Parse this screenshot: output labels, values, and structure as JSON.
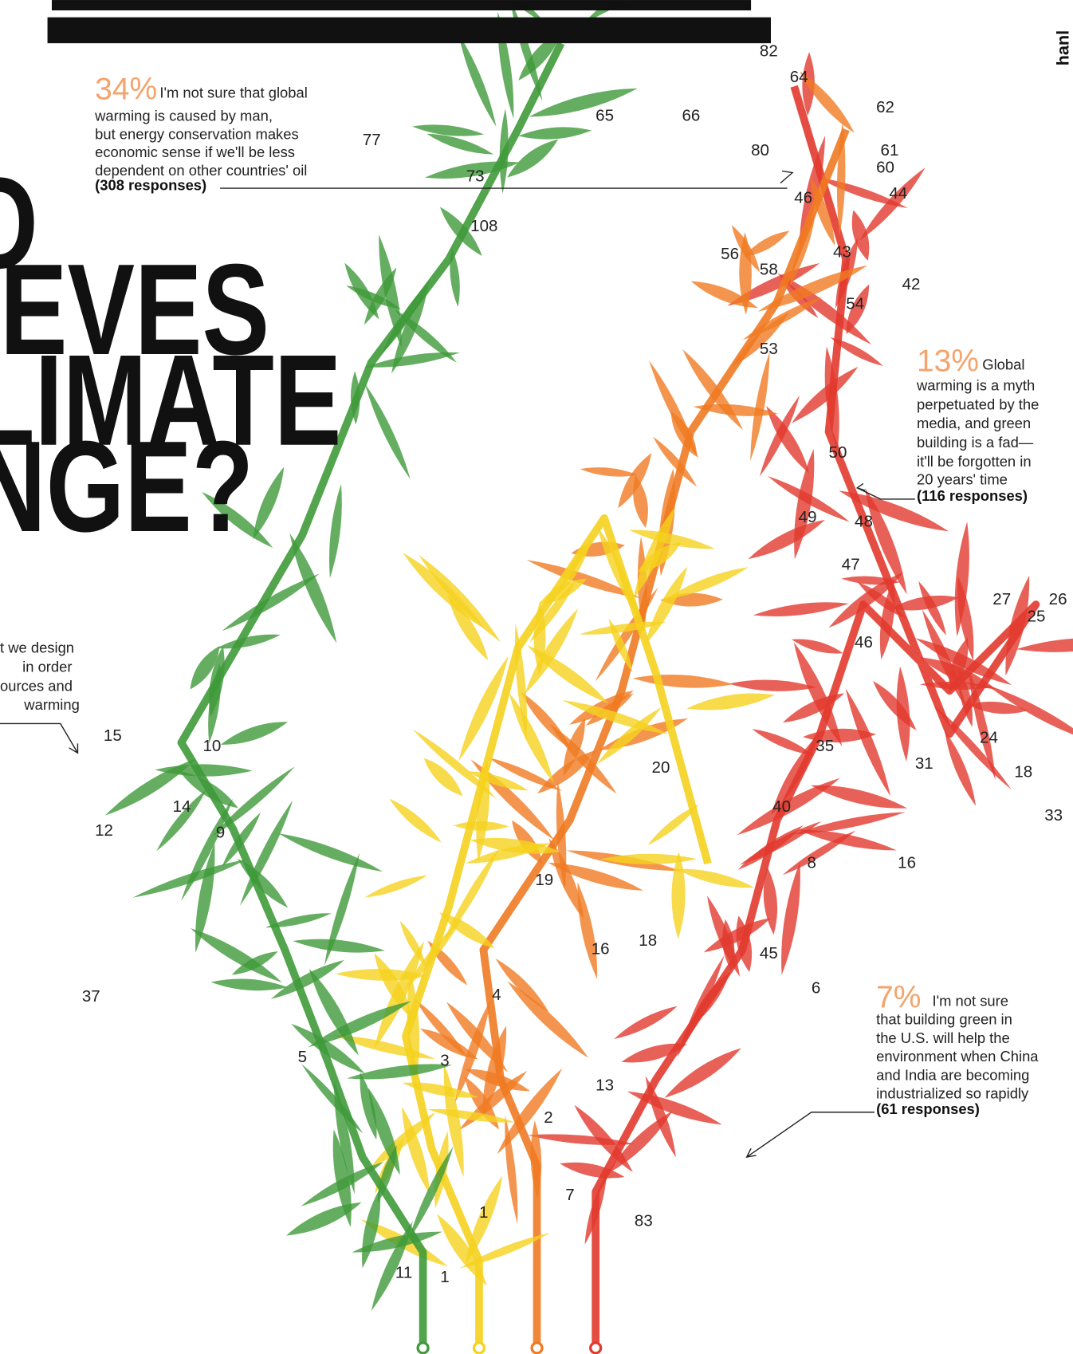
{
  "header": {
    "title_lines": [
      "O",
      "EVES",
      "LIMATE",
      "NGE?"
    ],
    "corner": "hanl"
  },
  "annotations": [
    {
      "percent": "34%",
      "lines": [
        "I'm not sure that global",
        "warming is caused by man,",
        "but energy conservation makes",
        "economic sense if we'll be less",
        "dependent on other countries' oil"
      ],
      "responses": "(308 responses)"
    },
    {
      "percent": "13%",
      "lines": [
        "Global",
        "warming is a myth",
        "perpetuated by the",
        "media, and green",
        "building is a fad—",
        "it'll be forgotten in",
        "20 years' time"
      ],
      "responses": "(116 responses)"
    },
    {
      "percent": "7%",
      "lines": [
        "I'm not sure",
        "that building green in",
        "the U.S. will help the",
        "environment when China",
        "and India are becoming",
        "industrialized so rapidly"
      ],
      "responses": "(61 responses)"
    }
  ],
  "left_fragment": {
    "lines": [
      "t we design",
      "in order",
      "ources and",
      "warming"
    ]
  },
  "leaf_labels": [
    "77",
    "73",
    "108",
    "65",
    "66",
    "80",
    "82",
    "64",
    "62",
    "61",
    "60",
    "44",
    "46",
    "43",
    "42",
    "54",
    "56",
    "58",
    "53",
    "50",
    "49",
    "48",
    "47",
    "46",
    "27",
    "26",
    "25",
    "18",
    "33",
    "16",
    "20",
    "19",
    "18",
    "16",
    "15",
    "14",
    "13",
    "12",
    "10",
    "9",
    "8",
    "7",
    "6",
    "5",
    "4",
    "3",
    "2",
    "1",
    "1",
    "11",
    "83",
    "37",
    "35",
    "31",
    "24",
    "40",
    "45"
  ]
}
